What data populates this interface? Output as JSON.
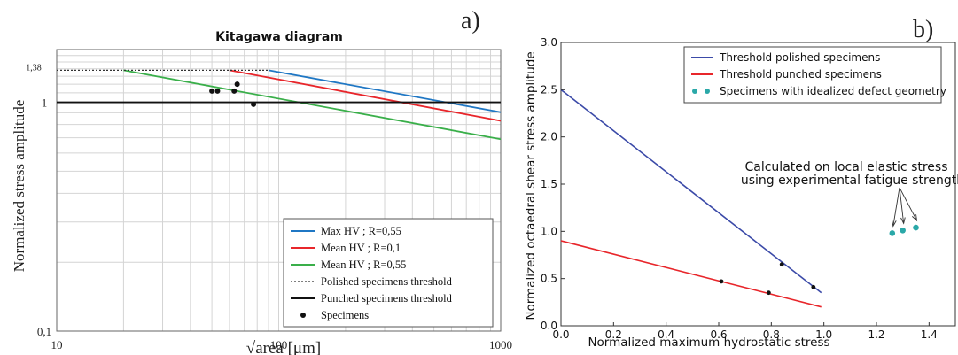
{
  "chart_data": [
    {
      "panel_label": "a)",
      "type": "line",
      "title": "Kitagawa diagram",
      "xlabel": "√area [μm]",
      "ylabel": "Normalized stress amplitude",
      "xscale": "log",
      "yscale": "log",
      "xlim": [
        10,
        1000
      ],
      "ylim": [
        0.1,
        1.7
      ],
      "xticks": [
        "10",
        "100",
        "1000"
      ],
      "yticks": [
        {
          "value": 0.1,
          "label": "0,1"
        },
        {
          "value": 1,
          "label": "1"
        },
        {
          "value": 1.38,
          "label": "1,38"
        }
      ],
      "grid": true,
      "legend_position": "bottom-right",
      "series": [
        {
          "name": "Max HV ; R=0,55",
          "color": "#1f77c4",
          "style": "solid",
          "x": [
            90,
            1000
          ],
          "y": [
            1.38,
            0.905
          ]
        },
        {
          "name": "Mean HV ; R=0,1",
          "color": "#e8262b",
          "style": "solid",
          "x": [
            60,
            1000
          ],
          "y": [
            1.38,
            0.83
          ]
        },
        {
          "name": "Mean HV ; R=0,55",
          "color": "#3aaf4a",
          "style": "solid",
          "x": [
            20,
            1000
          ],
          "y": [
            1.38,
            0.69
          ]
        },
        {
          "name": "Polished specimens threshold",
          "color": "#333333",
          "style": "dotted",
          "x": [
            10,
            90
          ],
          "y": [
            1.38,
            1.38
          ]
        },
        {
          "name": "Punched specimens threshold",
          "color": "#111111",
          "style": "solid",
          "x": [
            10,
            1000
          ],
          "y": [
            1.0,
            1.0
          ]
        }
      ],
      "scatter": {
        "name": "Specimens",
        "color": "#111111",
        "x": [
          50,
          53,
          63,
          65,
          77
        ],
        "y": [
          1.12,
          1.12,
          1.12,
          1.2,
          0.98
        ]
      }
    },
    {
      "panel_label": "b)",
      "type": "line",
      "title": "",
      "xlabel": "Normalized maximum hydrostatic stress",
      "ylabel": "Normalized octaedral shear stress amplitude",
      "xlim": [
        0,
        1.5
      ],
      "ylim": [
        0,
        3.0
      ],
      "xticks": [
        "0.0",
        "0.2",
        "0.4",
        "0.6",
        "0.8",
        "1.0",
        "1.2",
        "1.4"
      ],
      "yticks": [
        "0.0",
        "0.5",
        "1.0",
        "1.5",
        "2.0",
        "2.5",
        "3.0"
      ],
      "grid": false,
      "legend_position": "top-right",
      "series": [
        {
          "name": "Threshold polished specimens",
          "color": "#3b4aa8",
          "style": "solid",
          "x": [
            0.0,
            0.99
          ],
          "y": [
            2.5,
            0.35
          ]
        },
        {
          "name": "Threshold punched specimens",
          "color": "#e8262b",
          "style": "solid",
          "x": [
            0.0,
            0.99
          ],
          "y": [
            0.9,
            0.2
          ]
        }
      ],
      "markers": {
        "color": "#111111",
        "x": [
          0.61,
          0.79,
          0.84,
          0.96
        ],
        "y": [
          0.47,
          0.35,
          0.65,
          0.41
        ]
      },
      "scatter": {
        "name": "Specimens with idealized defect geometry",
        "color": "#2aa8a8",
        "x": [
          1.26,
          1.3,
          1.35
        ],
        "y": [
          0.98,
          1.01,
          1.04
        ]
      },
      "annotation": {
        "lines": [
          "Calculated on local elastic stress",
          "using experimental fatigue strength"
        ]
      }
    }
  ]
}
